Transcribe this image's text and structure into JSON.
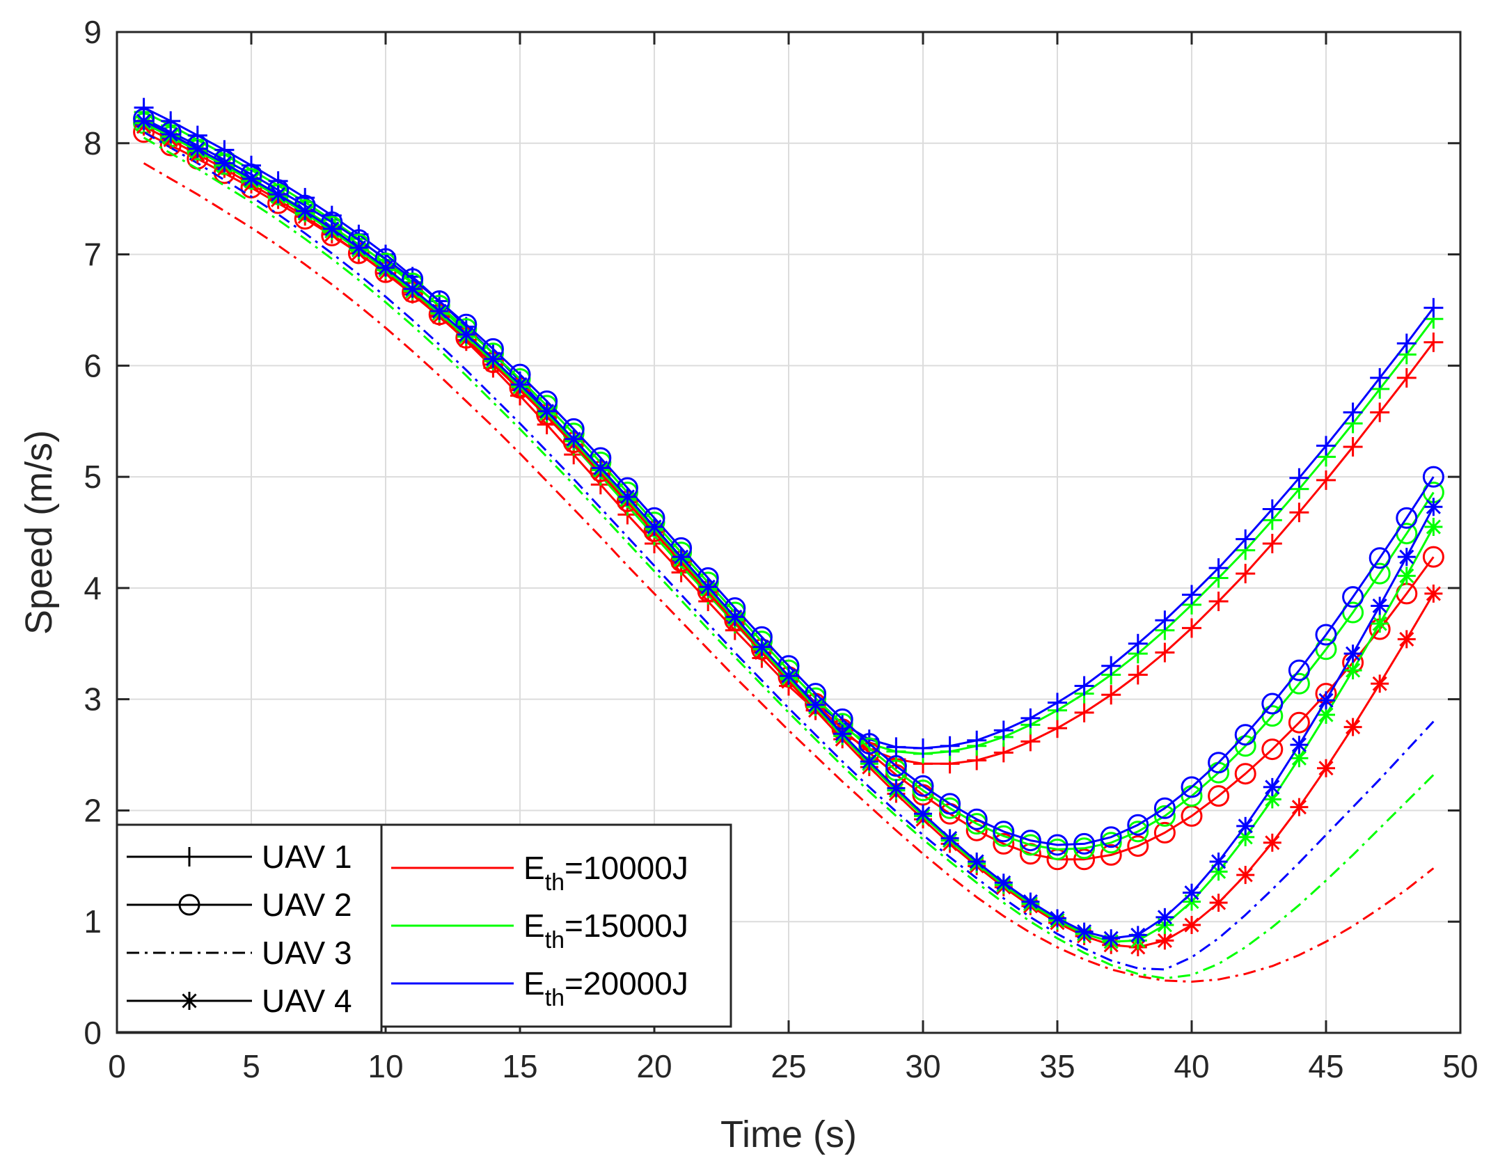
{
  "chart_data": {
    "type": "line",
    "title": "",
    "xlabel": "Time (s)",
    "ylabel": "Speed (m/s)",
    "xlim": [
      0,
      50
    ],
    "ylim": [
      0,
      9
    ],
    "xticks": [
      0,
      5,
      10,
      15,
      20,
      25,
      30,
      35,
      40,
      45,
      50
    ],
    "yticks": [
      0,
      1,
      2,
      3,
      4,
      5,
      6,
      7,
      8,
      9
    ],
    "grid": true,
    "x": [
      1,
      2,
      3,
      4,
      5,
      6,
      7,
      8,
      9,
      10,
      11,
      12,
      13,
      14,
      15,
      16,
      17,
      18,
      19,
      20,
      21,
      22,
      23,
      24,
      25,
      26,
      27,
      28,
      29,
      30,
      31,
      32,
      33,
      34,
      35,
      36,
      37,
      38,
      39,
      40,
      41,
      42,
      43,
      44,
      45,
      46,
      47,
      48,
      49
    ],
    "legend_uav": {
      "location": "bottom-left",
      "entries": [
        {
          "label": "UAV 1",
          "style": "solid-plus"
        },
        {
          "label": "UAV 2",
          "style": "solid-circle"
        },
        {
          "label": "UAV 3",
          "style": "dash-dot"
        },
        {
          "label": "UAV 4",
          "style": "solid-asterisk"
        }
      ]
    },
    "legend_energy": {
      "location": "bottom-left-inner",
      "entries": [
        {
          "base": "E",
          "sub": "th",
          "value": "=10000J",
          "color": "#ff0000"
        },
        {
          "base": "E",
          "sub": "th",
          "value": "=15000J",
          "color": "#00ff00"
        },
        {
          "base": "E",
          "sub": "th",
          "value": "=20000J",
          "color": "#0000ff"
        }
      ]
    },
    "series": [
      {
        "name": "UAV 1, Eth=10000J",
        "uav": "UAV 1",
        "color": "#ff0000",
        "style": "solid",
        "marker": "plus",
        "values": [
          8.2,
          8.08,
          7.95,
          7.82,
          7.68,
          7.53,
          7.38,
          7.22,
          7.05,
          6.86,
          6.66,
          6.45,
          6.22,
          5.98,
          5.73,
          5.47,
          5.2,
          4.93,
          4.66,
          4.4,
          4.14,
          3.88,
          3.62,
          3.37,
          3.12,
          2.9,
          2.7,
          2.55,
          2.46,
          2.42,
          2.42,
          2.45,
          2.52,
          2.62,
          2.74,
          2.88,
          3.04,
          3.22,
          3.42,
          3.64,
          3.88,
          4.13,
          4.4,
          4.68,
          4.97,
          5.27,
          5.58,
          5.89,
          6.21
        ]
      },
      {
        "name": "UAV 1, Eth=15000J",
        "uav": "UAV 1",
        "color": "#00ff00",
        "style": "solid",
        "marker": "plus",
        "values": [
          8.28,
          8.16,
          8.03,
          7.9,
          7.76,
          7.62,
          7.47,
          7.31,
          7.14,
          6.95,
          6.75,
          6.53,
          6.3,
          6.06,
          5.81,
          5.55,
          5.28,
          5.01,
          4.74,
          4.47,
          4.2,
          3.94,
          3.68,
          3.42,
          3.17,
          2.94,
          2.75,
          2.6,
          2.53,
          2.51,
          2.53,
          2.58,
          2.66,
          2.77,
          2.9,
          3.05,
          3.22,
          3.41,
          3.62,
          3.85,
          4.09,
          4.34,
          4.61,
          4.89,
          5.18,
          5.48,
          5.79,
          6.1,
          6.42
        ]
      },
      {
        "name": "UAV 1, Eth=20000J",
        "uav": "UAV 1",
        "color": "#0000ff",
        "style": "solid",
        "marker": "plus",
        "values": [
          8.32,
          8.2,
          8.07,
          7.94,
          7.8,
          7.66,
          7.51,
          7.35,
          7.18,
          7.0,
          6.8,
          6.58,
          6.35,
          6.11,
          5.86,
          5.6,
          5.33,
          5.06,
          4.78,
          4.51,
          4.24,
          3.97,
          3.71,
          3.45,
          3.2,
          2.97,
          2.78,
          2.64,
          2.57,
          2.56,
          2.58,
          2.63,
          2.72,
          2.83,
          2.97,
          3.12,
          3.3,
          3.5,
          3.71,
          3.94,
          4.18,
          4.44,
          4.71,
          4.99,
          5.28,
          5.58,
          5.89,
          6.2,
          6.52
        ]
      },
      {
        "name": "UAV 2, Eth=10000J",
        "uav": "UAV 2",
        "color": "#ff0000",
        "style": "solid",
        "marker": "circle",
        "values": [
          8.1,
          7.98,
          7.86,
          7.73,
          7.6,
          7.46,
          7.32,
          7.17,
          7.01,
          6.84,
          6.66,
          6.46,
          6.25,
          6.03,
          5.8,
          5.56,
          5.31,
          5.05,
          4.78,
          4.51,
          4.24,
          3.97,
          3.71,
          3.45,
          3.2,
          2.96,
          2.73,
          2.52,
          2.32,
          2.14,
          1.97,
          1.82,
          1.7,
          1.61,
          1.56,
          1.56,
          1.6,
          1.68,
          1.8,
          1.95,
          2.13,
          2.33,
          2.55,
          2.79,
          3.05,
          3.33,
          3.63,
          3.95,
          4.28
        ]
      },
      {
        "name": "UAV 2, Eth=15000J",
        "uav": "UAV 2",
        "color": "#00ff00",
        "style": "solid",
        "marker": "circle",
        "values": [
          8.18,
          8.06,
          7.94,
          7.81,
          7.68,
          7.54,
          7.4,
          7.25,
          7.09,
          6.92,
          6.74,
          6.54,
          6.33,
          6.11,
          5.88,
          5.64,
          5.39,
          5.13,
          4.86,
          4.59,
          4.32,
          4.05,
          3.78,
          3.52,
          3.26,
          3.01,
          2.78,
          2.56,
          2.36,
          2.18,
          2.02,
          1.88,
          1.77,
          1.69,
          1.65,
          1.66,
          1.71,
          1.81,
          1.95,
          2.13,
          2.34,
          2.58,
          2.85,
          3.14,
          3.45,
          3.78,
          4.13,
          4.49,
          4.86
        ]
      },
      {
        "name": "UAV 2, Eth=20000J",
        "uav": "UAV 2",
        "color": "#0000ff",
        "style": "solid",
        "marker": "circle",
        "values": [
          8.22,
          8.1,
          7.98,
          7.85,
          7.72,
          7.58,
          7.44,
          7.29,
          7.13,
          6.96,
          6.78,
          6.58,
          6.37,
          6.15,
          5.92,
          5.68,
          5.43,
          5.17,
          4.9,
          4.63,
          4.36,
          4.09,
          3.82,
          3.56,
          3.3,
          3.05,
          2.82,
          2.6,
          2.4,
          2.22,
          2.06,
          1.92,
          1.81,
          1.73,
          1.69,
          1.7,
          1.76,
          1.87,
          2.02,
          2.21,
          2.43,
          2.68,
          2.96,
          3.26,
          3.58,
          3.92,
          4.27,
          4.63,
          5.0
        ]
      },
      {
        "name": "UAV 3, Eth=10000J",
        "uav": "UAV 3",
        "color": "#ff0000",
        "style": "dashdot",
        "marker": "none",
        "values": [
          7.82,
          7.68,
          7.54,
          7.39,
          7.24,
          7.08,
          6.91,
          6.73,
          6.54,
          6.34,
          6.13,
          5.91,
          5.68,
          5.45,
          5.21,
          4.96,
          4.71,
          4.46,
          4.2,
          3.95,
          3.7,
          3.45,
          3.2,
          2.96,
          2.72,
          2.49,
          2.26,
          2.04,
          1.82,
          1.61,
          1.41,
          1.22,
          1.05,
          0.9,
          0.77,
          0.66,
          0.57,
          0.51,
          0.47,
          0.46,
          0.48,
          0.53,
          0.6,
          0.7,
          0.82,
          0.96,
          1.12,
          1.29,
          1.48
        ]
      },
      {
        "name": "UAV 3, Eth=15000J",
        "uav": "UAV 3",
        "color": "#00ff00",
        "style": "dashdot",
        "marker": "none",
        "values": [
          8.05,
          7.91,
          7.77,
          7.62,
          7.47,
          7.31,
          7.14,
          6.96,
          6.77,
          6.57,
          6.36,
          6.14,
          5.91,
          5.67,
          5.43,
          5.18,
          4.93,
          4.67,
          4.41,
          4.15,
          3.89,
          3.63,
          3.38,
          3.13,
          2.88,
          2.64,
          2.4,
          2.17,
          1.95,
          1.74,
          1.54,
          1.35,
          1.17,
          1.0,
          0.85,
          0.72,
          0.61,
          0.53,
          0.49,
          0.52,
          0.62,
          0.77,
          0.95,
          1.15,
          1.37,
          1.6,
          1.84,
          2.08,
          2.32
        ]
      },
      {
        "name": "UAV 3, Eth=20000J",
        "uav": "UAV 3",
        "color": "#0000ff",
        "style": "dashdot",
        "marker": "none",
        "values": [
          8.1,
          7.96,
          7.82,
          7.67,
          7.52,
          7.36,
          7.19,
          7.01,
          6.82,
          6.62,
          6.41,
          6.19,
          5.96,
          5.72,
          5.48,
          5.23,
          4.98,
          4.72,
          4.46,
          4.2,
          3.94,
          3.68,
          3.42,
          3.17,
          2.92,
          2.68,
          2.44,
          2.21,
          1.99,
          1.78,
          1.58,
          1.39,
          1.21,
          1.04,
          0.89,
          0.76,
          0.65,
          0.58,
          0.57,
          0.68,
          0.85,
          1.06,
          1.29,
          1.53,
          1.78,
          2.03,
          2.28,
          2.54,
          2.8
        ]
      },
      {
        "name": "UAV 4, Eth=10000J",
        "uav": "UAV 4",
        "color": "#ff0000",
        "style": "solid",
        "marker": "asterisk",
        "values": [
          8.15,
          8.03,
          7.9,
          7.77,
          7.63,
          7.49,
          7.34,
          7.18,
          7.01,
          6.83,
          6.64,
          6.44,
          6.23,
          6.01,
          5.78,
          5.54,
          5.29,
          5.03,
          4.77,
          4.5,
          4.23,
          3.96,
          3.69,
          3.42,
          3.16,
          2.9,
          2.64,
          2.39,
          2.15,
          1.92,
          1.7,
          1.5,
          1.31,
          1.14,
          0.99,
          0.87,
          0.79,
          0.77,
          0.83,
          0.97,
          1.17,
          1.42,
          1.71,
          2.03,
          2.38,
          2.75,
          3.14,
          3.54,
          3.95
        ]
      },
      {
        "name": "UAV 4, Eth=15000J",
        "uav": "UAV 4",
        "color": "#00ff00",
        "style": "solid",
        "marker": "asterisk",
        "values": [
          8.18,
          8.06,
          7.93,
          7.8,
          7.66,
          7.52,
          7.37,
          7.21,
          7.04,
          6.86,
          6.67,
          6.47,
          6.26,
          6.04,
          5.81,
          5.57,
          5.32,
          5.06,
          4.8,
          4.53,
          4.26,
          3.99,
          3.72,
          3.45,
          3.19,
          2.93,
          2.67,
          2.42,
          2.18,
          1.95,
          1.73,
          1.52,
          1.33,
          1.16,
          1.01,
          0.89,
          0.82,
          0.83,
          0.97,
          1.18,
          1.45,
          1.76,
          2.1,
          2.47,
          2.86,
          3.26,
          3.68,
          4.11,
          4.55
        ]
      },
      {
        "name": "UAV 4, Eth=20000J",
        "uav": "UAV 4",
        "color": "#0000ff",
        "style": "solid",
        "marker": "asterisk",
        "values": [
          8.2,
          8.08,
          7.95,
          7.82,
          7.68,
          7.54,
          7.39,
          7.23,
          7.06,
          6.88,
          6.69,
          6.49,
          6.28,
          6.06,
          5.83,
          5.59,
          5.34,
          5.08,
          4.82,
          4.55,
          4.28,
          4.01,
          3.74,
          3.47,
          3.21,
          2.95,
          2.69,
          2.44,
          2.2,
          1.97,
          1.75,
          1.54,
          1.35,
          1.18,
          1.03,
          0.91,
          0.85,
          0.88,
          1.04,
          1.26,
          1.54,
          1.86,
          2.21,
          2.59,
          2.99,
          3.41,
          3.84,
          4.28,
          4.73
        ]
      }
    ]
  }
}
